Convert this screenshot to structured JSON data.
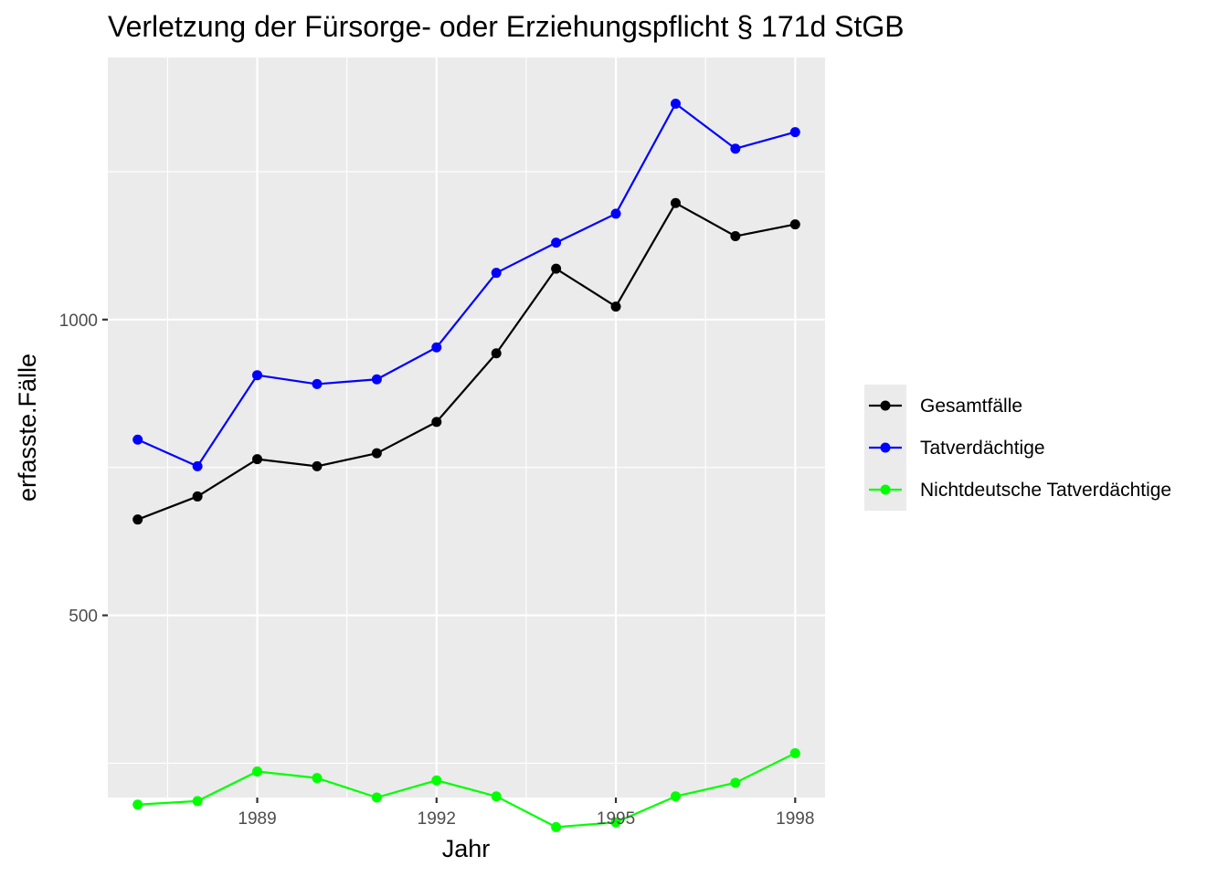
{
  "chart_data": {
    "type": "line",
    "title": "Verletzung der Fürsorge- oder Erziehungspflicht § 171d StGB",
    "xlabel": "Jahr",
    "ylabel": "erfasste.Fälle",
    "x": [
      1987,
      1988,
      1989,
      1990,
      1991,
      1992,
      1993,
      1994,
      1995,
      1996,
      1997,
      1998
    ],
    "xlim": [
      1986.5,
      1998.5
    ],
    "ylim": [
      192,
      1443
    ],
    "x_ticks": [
      1989,
      1992,
      1995,
      1998
    ],
    "x_tick_labels": [
      "1989",
      "1992",
      "1995",
      "1998"
    ],
    "y_ticks": [
      500,
      1000
    ],
    "y_tick_labels": [
      "500",
      "1000"
    ],
    "grid": true,
    "legend_position": "right",
    "series": [
      {
        "name": "Gesamtfälle",
        "color": "#000000",
        "values": [
          662,
          701,
          764,
          752,
          774,
          827,
          943,
          1086,
          1022,
          1197,
          1141,
          1161
        ]
      },
      {
        "name": "Tatverdächtige",
        "color": "#0000ff",
        "values": [
          797,
          752,
          906,
          891,
          899,
          953,
          1079,
          1130,
          1179,
          1365,
          1289,
          1317
        ]
      },
      {
        "name": "Nichtdeutsche Tatverdächtige",
        "color": "#00ff00",
        "values": [
          180,
          186,
          236,
          225,
          192,
          221,
          194,
          142,
          150,
          194,
          217,
          267
        ]
      }
    ]
  }
}
